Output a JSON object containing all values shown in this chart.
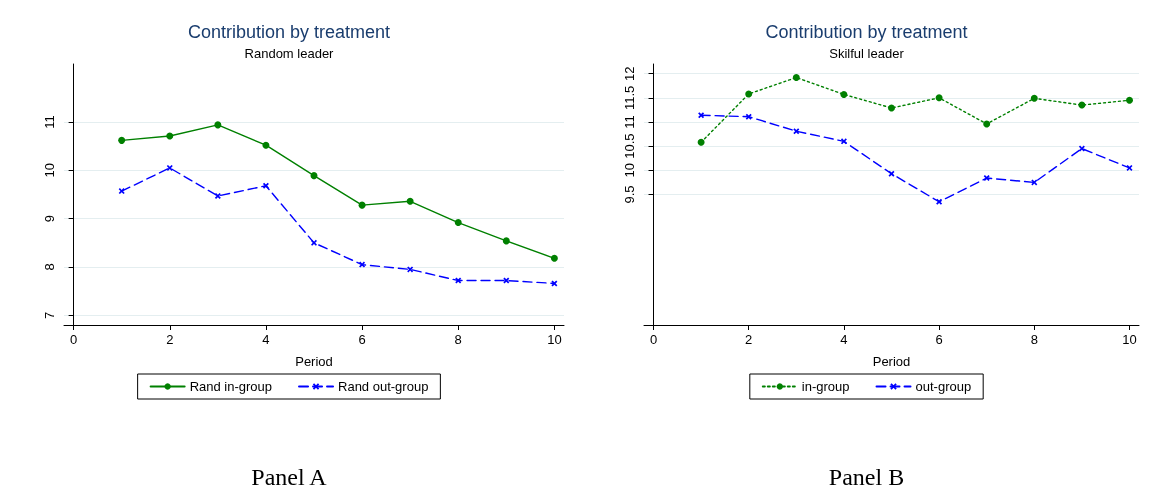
{
  "chart_data": [
    {
      "type": "line",
      "title": "Contribution by treatment",
      "subtitle": "Random leader",
      "xlabel": "Period",
      "annotations": [
        "Panel A"
      ],
      "x": [
        1,
        2,
        3,
        4,
        5,
        6,
        7,
        8,
        9,
        10
      ],
      "series": [
        {
          "name": "Rand in-group",
          "color": "#008000",
          "marker": "circle",
          "line_style": "solid",
          "values": [
            10.62,
            10.71,
            10.94,
            10.52,
            9.89,
            9.28,
            9.36,
            8.92,
            8.54,
            8.18
          ]
        },
        {
          "name": "Rand out-group",
          "color": "#0000ff",
          "marker": "cross",
          "line_style": "dashed",
          "values": [
            9.57,
            10.05,
            9.47,
            9.68,
            8.5,
            8.05,
            7.95,
            7.72,
            7.72,
            7.66
          ]
        }
      ],
      "xlim": [
        -0.2,
        10.2
      ],
      "xticks": [
        0,
        2,
        4,
        6,
        8,
        10
      ],
      "ylim": [
        6.8,
        12.2
      ],
      "yticks": [
        7,
        8,
        9,
        10,
        11
      ],
      "grid": "y",
      "legend": "bottom"
    },
    {
      "type": "line",
      "title": "Contribution by treatment",
      "subtitle": "Skilful leader",
      "xlabel": "Period",
      "annotations": [
        "Panel B"
      ],
      "x": [
        1,
        2,
        3,
        4,
        5,
        6,
        7,
        8,
        9,
        10
      ],
      "series": [
        {
          "name": "in-group",
          "color": "#008000",
          "marker": "circle",
          "line_style": "dotted",
          "values": [
            10.58,
            11.58,
            11.92,
            11.57,
            11.29,
            11.5,
            10.96,
            11.49,
            11.35,
            11.45
          ]
        },
        {
          "name": "out-group",
          "color": "#0000ff",
          "marker": "cross",
          "line_style": "dashed",
          "values": [
            11.14,
            11.11,
            10.81,
            10.6,
            9.93,
            9.35,
            9.84,
            9.75,
            10.45,
            10.05
          ]
        }
      ],
      "xlim": [
        -0.2,
        10.2
      ],
      "xticks": [
        0,
        2,
        4,
        6,
        8,
        10
      ],
      "ylim": [
        6.8,
        12.2
      ],
      "yticks": [
        9.5,
        10,
        10.5,
        11,
        11.5,
        12
      ],
      "grid": "y",
      "legend": "bottom"
    }
  ]
}
